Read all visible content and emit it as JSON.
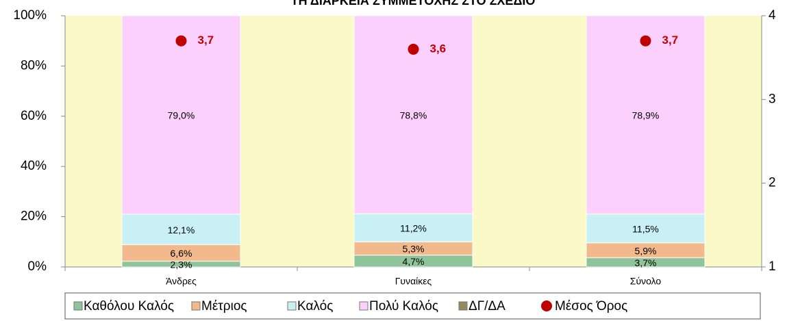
{
  "chart_data": {
    "type": "bar",
    "title": "ΤΗ ΔΙΑΡΚΕΙΑ ΣΥΜΜΕΤΟΧΗΣ ΣΤΟ ΣΧΕΔΙΟ",
    "categories": [
      "Άνδρες",
      "Γυναίκες",
      "Σύνολο"
    ],
    "stacked": true,
    "series": [
      {
        "name": "Καθόλου Καλός",
        "color": "#8fc49a",
        "values": [
          2.3,
          4.7,
          3.7
        ],
        "value_labels": [
          "2,3%",
          "4,7%",
          "3,7%"
        ]
      },
      {
        "name": "Μέτριος",
        "color": "#f2b98c",
        "values": [
          6.6,
          5.3,
          5.9
        ],
        "value_labels": [
          "6,6%",
          "5,3%",
          "5,9%"
        ]
      },
      {
        "name": "Καλός",
        "color": "#c9f1f5",
        "values": [
          12.1,
          11.2,
          11.5
        ],
        "value_labels": [
          "12,1%",
          "11,2%",
          "11,5%"
        ]
      },
      {
        "name": "Πολύ Καλός",
        "color": "#fcd0fc",
        "values": [
          79.0,
          78.8,
          78.9
        ],
        "value_labels": [
          "79,0%",
          "78,8%",
          "78,9%"
        ]
      },
      {
        "name": "ΔΓ/ΔΑ",
        "color": "#948a5a",
        "values": [
          0,
          0,
          0
        ]
      },
      {
        "name": "Μέσος Όρος",
        "color": "#c00000",
        "type": "scatter",
        "axis": "y2",
        "values": [
          3.7,
          3.6,
          3.7
        ],
        "value_labels": [
          "3,7",
          "3,6",
          "3,7"
        ]
      }
    ],
    "ylim": [
      0,
      100
    ],
    "yticks": [
      {
        "value": 0,
        "label": "0%"
      },
      {
        "value": 20,
        "label": "20%"
      },
      {
        "value": 40,
        "label": "40%"
      },
      {
        "value": 60,
        "label": "60%"
      },
      {
        "value": 80,
        "label": "80%"
      },
      {
        "value": 100,
        "label": "100%"
      }
    ],
    "y2lim": [
      1,
      4
    ],
    "y2ticks": [
      1,
      2,
      3,
      4
    ],
    "plot_background": "#fcf9c9",
    "legend": "bottom"
  }
}
